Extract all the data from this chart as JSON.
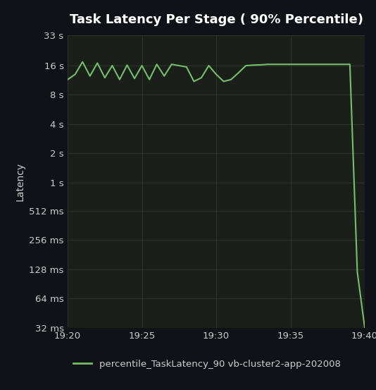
{
  "title": "Task Latency Per Stage ( 90% Percentile)",
  "background_color": "#111217",
  "plot_bg_color": "#1a1f1a",
  "line_color": "#73bf69",
  "grid_color": "#333a33",
  "text_color": "#cccccc",
  "legend_label": "percentile_TaskLatency_90 vb-cluster2-app-202008",
  "ylabel": "Latency",
  "x_ticks_labels": [
    "19:20",
    "19:25",
    "19:30",
    "19:35",
    "19:40"
  ],
  "y_tick_labels": [
    "32 ms",
    "64 ms",
    "128 ms",
    "256 ms",
    "512 ms",
    "1 s",
    "2 s",
    "4 s",
    "8 s",
    "16 s",
    "33 s"
  ],
  "y_tick_values": [
    0.032,
    0.064,
    0.128,
    0.256,
    0.512,
    1.0,
    2.0,
    4.0,
    8.0,
    16.0,
    33.0
  ],
  "x_data": [
    0,
    1,
    2,
    3,
    4,
    5,
    6,
    7,
    8,
    9,
    10,
    11,
    12,
    13,
    14,
    15,
    16,
    17,
    18,
    19,
    20,
    21,
    22,
    23,
    24,
    25,
    26,
    27,
    28,
    29,
    30,
    31,
    32,
    33,
    34,
    35,
    36,
    37,
    38,
    39,
    40
  ],
  "y_data": [
    11.5,
    13.0,
    17.5,
    12.5,
    17.0,
    12.0,
    16.0,
    11.5,
    16.2,
    11.8,
    16.0,
    11.5,
    16.5,
    12.5,
    16.5,
    16.0,
    15.5,
    11.0,
    12.0,
    16.0,
    13.0,
    11.0,
    11.5,
    13.5,
    16.0,
    16.2,
    16.3,
    16.5,
    16.5,
    16.5,
    16.5,
    16.5,
    16.5,
    16.5,
    16.5,
    16.5,
    16.5,
    16.5,
    16.5,
    0.12,
    0.032
  ],
  "x_min": 0,
  "x_max": 40,
  "y_min": 0.032,
  "y_max": 33.0,
  "title_fontsize": 13,
  "axis_label_fontsize": 10,
  "tick_fontsize": 9.5,
  "legend_fontsize": 9.5,
  "line_width": 1.5
}
